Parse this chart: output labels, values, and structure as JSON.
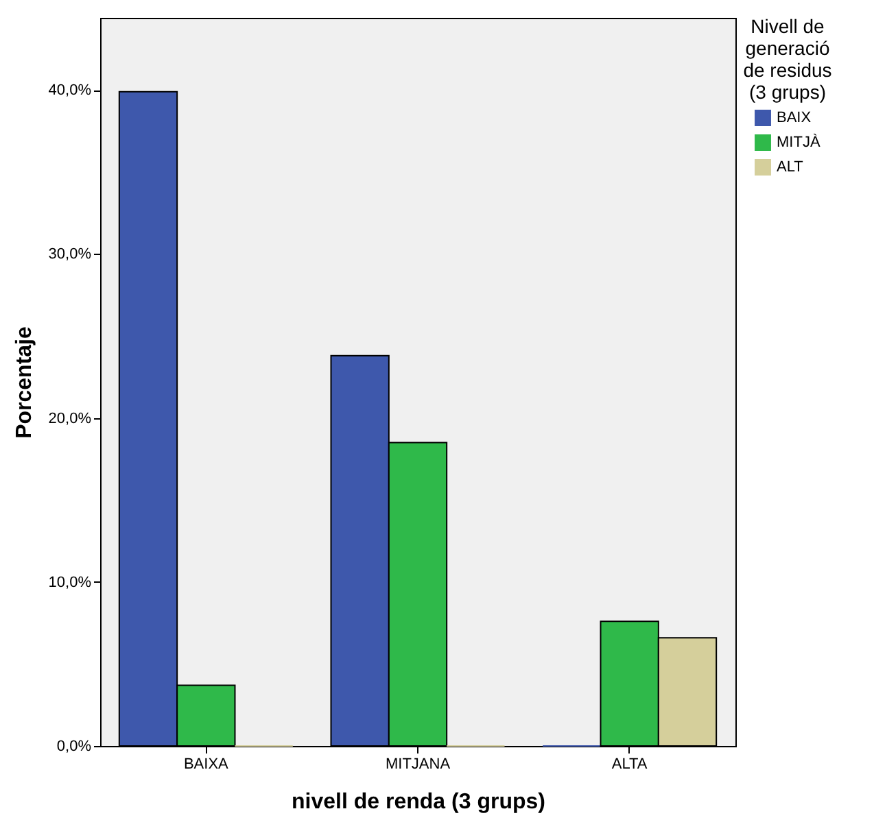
{
  "chart_data": {
    "type": "bar",
    "xlabel": "nivell de renda (3 grups)",
    "ylabel": "Porcentaje",
    "legend_title": "Nivell de generació de residus (3 grups)",
    "legend": "top right",
    "grid": false,
    "categories": [
      "BAIXA",
      "MITJANA",
      "ALTA"
    ],
    "series": [
      {
        "name": "BAIX",
        "color": "#3e58ac",
        "values": [
          39.9,
          23.8,
          0
        ]
      },
      {
        "name": "MITJÀ",
        "color": "#2fb94a",
        "values": [
          3.7,
          18.5,
          7.6
        ]
      },
      {
        "name": "ALT",
        "color": "#d5cf9b",
        "values": [
          0,
          0,
          6.6
        ]
      }
    ],
    "ylim": [
      0,
      44.4
    ],
    "yticks": [
      {
        "value": 0,
        "label": "0,0%"
      },
      {
        "value": 10,
        "label": "10,0%"
      },
      {
        "value": 20,
        "label": "20,0%"
      },
      {
        "value": 30,
        "label": "30,0%"
      },
      {
        "value": 40,
        "label": "40,0%"
      }
    ]
  }
}
